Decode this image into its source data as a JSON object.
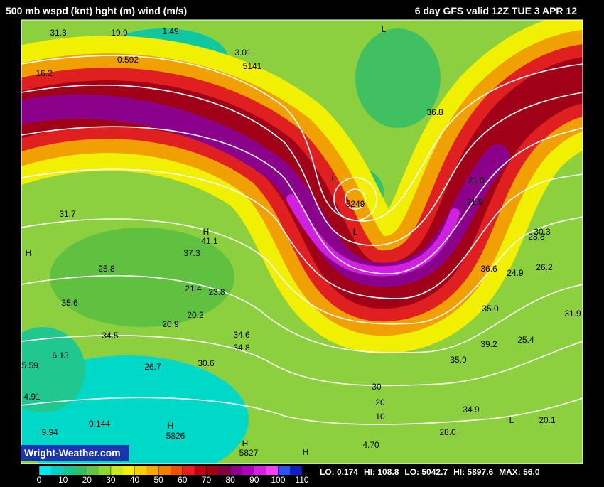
{
  "header": {
    "left": "500 mb wspd (knt) hght (m) wind (m/s)",
    "right": "6 day GFS valid 12Z TUE  3 APR 12"
  },
  "watermark": "Wright-Weather.com",
  "colorbar": {
    "ticks": [
      0,
      10,
      20,
      30,
      40,
      50,
      60,
      70,
      80,
      90,
      100,
      110
    ],
    "colors": [
      "#00e8e8",
      "#00d0c8",
      "#10c890",
      "#30c060",
      "#60c840",
      "#90d830",
      "#c8e820",
      "#f0f000",
      "#f8d000",
      "#f8a800",
      "#f08000",
      "#f05000",
      "#e82020",
      "#c00010",
      "#a00010",
      "#800040",
      "#900090",
      "#b000c0",
      "#d820e0",
      "#f040f0",
      "#3050f0",
      "#1020c0"
    ]
  },
  "stats": [
    "LO: 0.174",
    "HI: 108.8",
    "LO: 5042.7",
    "HI: 5897.6",
    "MAX: 56.0"
  ],
  "map_labels": [
    "5141",
    "5249",
    "5826",
    "5827",
    "L",
    "L",
    "L",
    "L",
    "H",
    "H",
    "H",
    "H",
    "H",
    "31.3",
    "19.9",
    "1.49",
    "16.2",
    "0.592",
    "3.01",
    "36.8",
    "21.0",
    "21.9",
    "28.8",
    "30.3",
    "26.2",
    "36.6",
    "35.0",
    "31.9",
    "25.4",
    "39.2",
    "35.9",
    "34.9",
    "28.0",
    "20.1",
    "4.91",
    "9.94",
    "5.59",
    "6.13",
    "34.5",
    "34.6",
    "34.8",
    "30.6",
    "26.7",
    "20.9",
    "20.2",
    "21.4",
    "23.8",
    "41.1",
    "37.3",
    "31.7",
    "35.6",
    "25.8",
    "4.70",
    "0.144",
    "30",
    "20",
    "10",
    "24.9"
  ]
}
